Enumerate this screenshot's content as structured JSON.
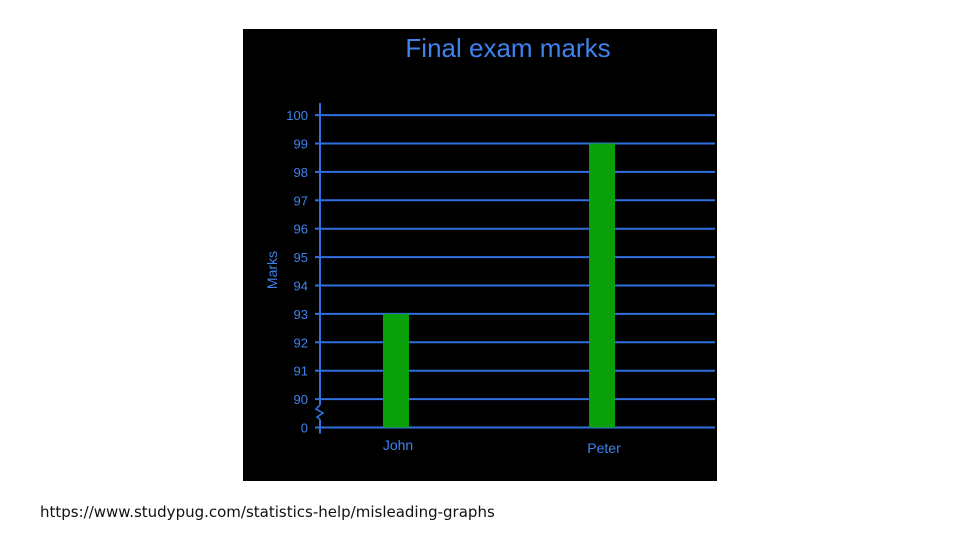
{
  "chart_data": {
    "type": "bar",
    "title": "Final exam marks",
    "xlabel": "",
    "ylabel": "Marks",
    "categories": [
      "John",
      "Peter"
    ],
    "values": [
      93,
      99
    ],
    "yticks": [
      "0",
      "90",
      "91",
      "92",
      "93",
      "94",
      "95",
      "96",
      "97",
      "98",
      "99",
      "100"
    ],
    "ylim": [
      89,
      100
    ],
    "axis_break": true,
    "grid": true,
    "legend": "none",
    "colors": {
      "background": "#000000",
      "grid": "#2f6fe0",
      "text": "#3d82ee",
      "bar": "#0aa00a"
    }
  },
  "caption": "https://www.studypug.com/statistics-help/misleading-graphs"
}
